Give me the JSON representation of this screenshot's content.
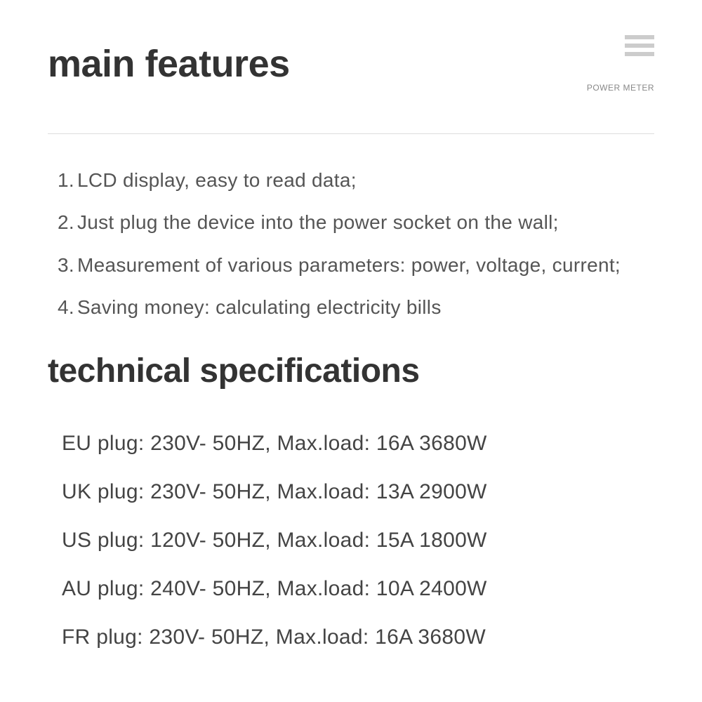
{
  "header": {
    "title": "main features",
    "subtitle": "POWER METER"
  },
  "features": [
    {
      "num": "1.",
      "text": "LCD display, easy to read data;"
    },
    {
      "num": "2.",
      "text": "Just plug the device into the power socket on the wall;"
    },
    {
      "num": "3.",
      "text": "Measurement of various parameters: power, voltage, current;"
    },
    {
      "num": "4.",
      "text": "Saving money: calculating electricity bills"
    }
  ],
  "specs_title": "technical specifications",
  "specs": [
    "EU plug: 230V- 50HZ, Max.load: 16A 3680W",
    "UK plug: 230V- 50HZ, Max.load: 13A 2900W",
    "US plug: 120V- 50HZ, Max.load: 15A 1800W",
    "AU plug: 240V- 50HZ, Max.load: 10A 2400W",
    "FR  plug: 230V- 50HZ, Max.load: 16A 3680W"
  ],
  "colors": {
    "background": "#ffffff",
    "heading": "#333333",
    "body_text": "#555555",
    "spec_text": "#444444",
    "subtitle": "#888888",
    "hamburger": "#cccccc",
    "divider": "#dddddd"
  },
  "typography": {
    "heading_fontsize": 54,
    "specs_heading_fontsize": 48,
    "feature_fontsize": 28,
    "spec_fontsize": 30,
    "subtitle_fontsize": 12,
    "heading_weight": 700
  }
}
